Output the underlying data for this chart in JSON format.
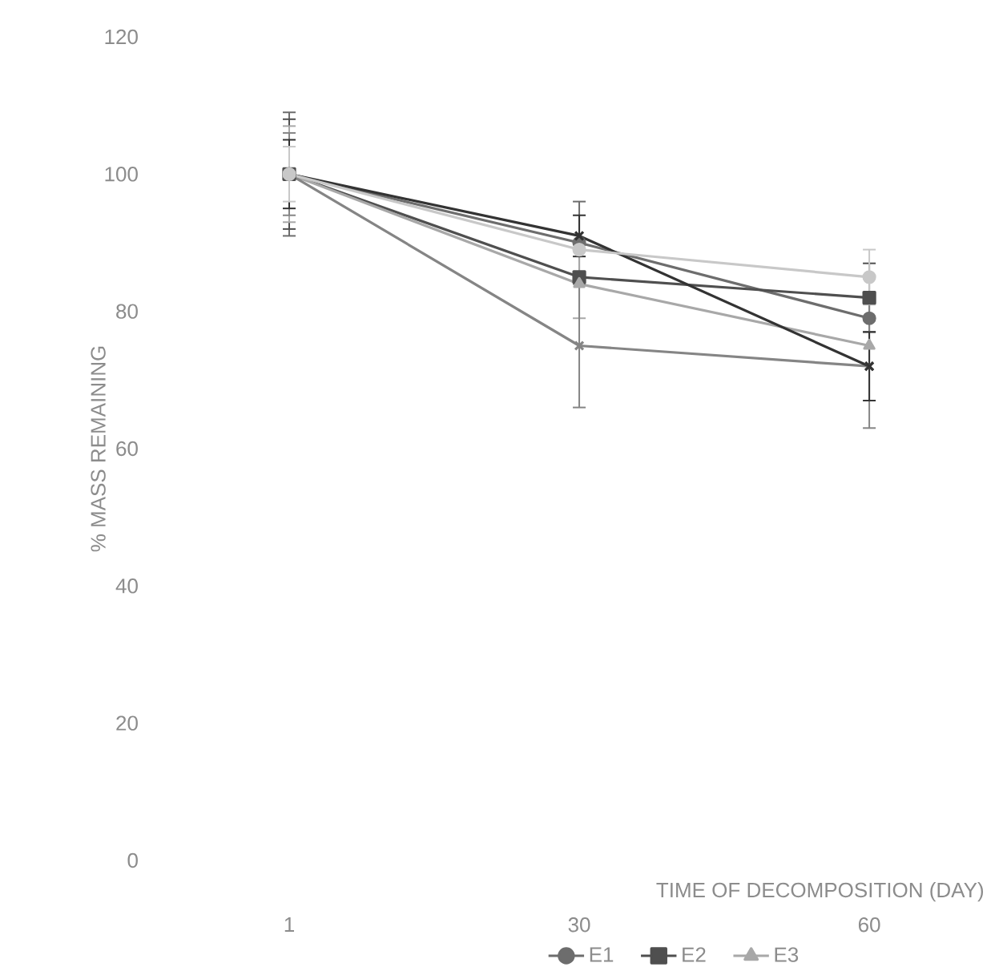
{
  "chart_data": {
    "type": "line",
    "xlabel": "TIME OF DECOMPOSITION (DAY)",
    "ylabel": "% MASS REMAINING",
    "categories": [
      "1",
      "30",
      "60"
    ],
    "ylim": [
      0,
      120
    ],
    "yticks": [
      0,
      20,
      40,
      60,
      80,
      100,
      120
    ],
    "grid": false,
    "legend": "bottom",
    "series": [
      {
        "name": "E1",
        "color": "#6d6d6d",
        "marker": "circle",
        "values": [
          100,
          90,
          79
        ],
        "errors": [
          9,
          6,
          null
        ]
      },
      {
        "name": "E2",
        "color": "#4f4f4f",
        "marker": "square",
        "values": [
          100,
          85,
          82
        ],
        "errors": [
          8,
          null,
          5
        ]
      },
      {
        "name": "E3",
        "color": "#a8a8a8",
        "marker": "triangle",
        "values": [
          100,
          84,
          75
        ],
        "errors": [
          7,
          5,
          null
        ]
      },
      {
        "color": "#858585",
        "marker": "cross",
        "values": [
          100,
          75,
          72
        ],
        "errors": [
          6,
          9,
          9
        ]
      },
      {
        "color": "#333333",
        "marker": "cross",
        "values": [
          100,
          91,
          72
        ],
        "errors": [
          5,
          3,
          5
        ]
      },
      {
        "color": "#c8c8c8",
        "marker": "circle",
        "values": [
          100,
          89,
          85
        ],
        "errors": [
          4,
          null,
          4
        ]
      }
    ]
  }
}
